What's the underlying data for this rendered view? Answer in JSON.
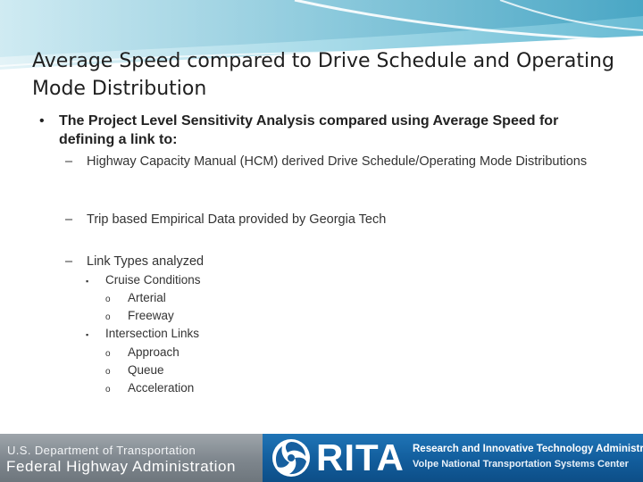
{
  "slide": {
    "title": "Average Speed compared to Drive Schedule and Operating Mode Distribution",
    "bullet_main": {
      "marker": "•",
      "text": "The Project Level Sensitivity Analysis compared using Average Speed for defining a link to:"
    },
    "sub_bullets": [
      {
        "marker": "–",
        "text": "Highway Capacity Manual (HCM) derived Drive Schedule/Operating Mode Distributions"
      },
      {
        "marker": "–",
        "text": "Trip based Empirical Data provided by Georgia Tech"
      },
      {
        "marker": "–",
        "text": "Link Types analyzed"
      }
    ],
    "link_types": [
      {
        "marker": "▪",
        "text": "Cruise Conditions",
        "children": [
          {
            "marker": "o",
            "text": "Arterial"
          },
          {
            "marker": "o",
            "text": "Freeway"
          }
        ]
      },
      {
        "marker": "▪",
        "text": "Intersection Links",
        "children": [
          {
            "marker": "o",
            "text": "Approach"
          },
          {
            "marker": "o",
            "text": "Queue"
          },
          {
            "marker": "o",
            "text": "Acceleration"
          }
        ]
      }
    ]
  },
  "footer": {
    "fhwa_line1": "U.S. Department of Transportation",
    "fhwa_line2": "Federal Highway Administration",
    "rita_wordmark": "RITA",
    "rita_line1": "Research and Innovative Technology Administration",
    "rita_line2": "Volpe National Transportation Systems Center"
  },
  "colors": {
    "swoosh_light": "#cfe9f1",
    "swoosh_mid": "#7cc7db",
    "swoosh_dark": "#3a9fbf",
    "footer_gray": "#8a9197",
    "footer_blue": "#165f9f"
  },
  "icons": {
    "header": "wave-swoosh-icon",
    "rita_logo": "rita-swirl-logo-icon"
  }
}
